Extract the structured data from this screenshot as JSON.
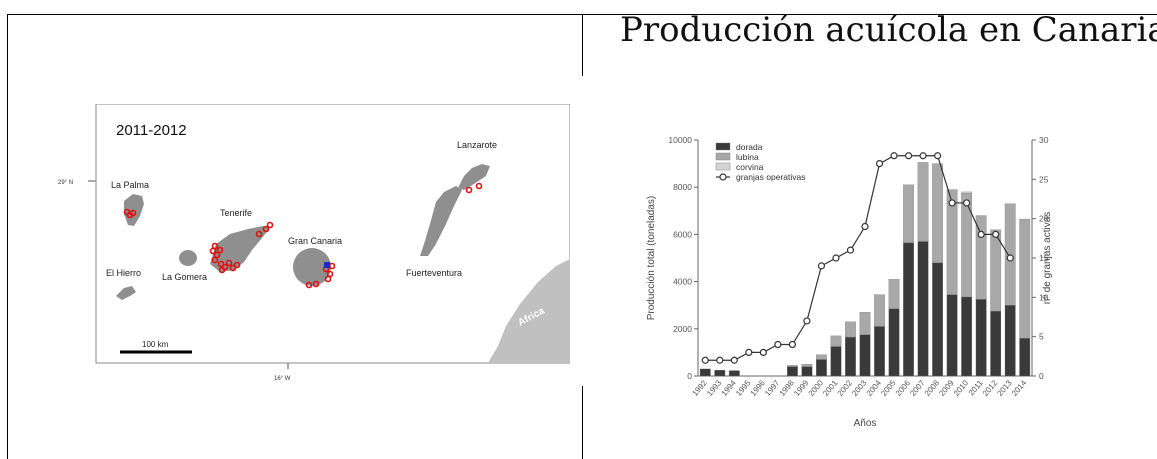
{
  "slide": {
    "title": "Producción acuícola en Canarias"
  },
  "map": {
    "period": "2011-2012",
    "lat_label": "29° N",
    "lon_label": "16° W",
    "scale_label": "100 km",
    "islands": {
      "la_palma": "La Palma",
      "el_hierro": "El Hierro",
      "la_gomera": "La Gomera",
      "tenerife": "Tenerife",
      "gran_canaria": "Gran Canaria",
      "fuerteventura": "Fuerteventura",
      "lanzarote": "Lanzarote",
      "africa": "Africa"
    },
    "colors": {
      "sea": "#ffffff",
      "land": "#8f8f8f",
      "africa": "#c0c0c0",
      "farm": "#e01010",
      "marker": "#1a2ad0"
    }
  },
  "chart_data": {
    "type": "bar",
    "stacked": true,
    "categories": [
      "1992",
      "1993",
      "1994",
      "1995",
      "1996",
      "1997",
      "1998",
      "1999",
      "2000",
      "2001",
      "2002",
      "2003",
      "2004",
      "2005",
      "2006",
      "2007",
      "2008",
      "2009",
      "2010",
      "2011",
      "2012",
      "2013",
      "2014"
    ],
    "series": [
      {
        "name": "dorada",
        "color": "#3a3a3a",
        "values": [
          300,
          250,
          230,
          0,
          0,
          0,
          400,
          400,
          700,
          1250,
          1650,
          1750,
          2100,
          2850,
          5650,
          5700,
          4800,
          3450,
          3350,
          3250,
          2750,
          3000,
          1600
        ]
      },
      {
        "name": "lubina",
        "color": "#a8a8a8",
        "values": [
          0,
          0,
          0,
          0,
          0,
          0,
          50,
          100,
          200,
          450,
          650,
          950,
          1350,
          1250,
          2450,
          3350,
          4200,
          4450,
          4400,
          3550,
          3450,
          4300,
          5050
        ]
      },
      {
        "name": "corvina",
        "color": "#d4d4d4",
        "values": [
          0,
          0,
          0,
          0,
          0,
          0,
          0,
          0,
          0,
          0,
          0,
          0,
          0,
          0,
          0,
          0,
          0,
          0,
          50,
          0,
          0,
          0,
          0
        ]
      }
    ],
    "line": {
      "name": "granjas operativas",
      "axis": "right",
      "values": [
        2,
        2,
        2,
        3,
        3,
        4,
        4,
        7,
        14,
        15,
        16,
        19,
        27,
        28,
        28,
        28,
        28,
        22,
        22,
        18,
        18,
        15,
        null
      ]
    },
    "xlabel": "Años",
    "ylabel": "Producción total (toneladas)",
    "y2label": "nº de granjas activas",
    "ylim": [
      0,
      10000
    ],
    "y2lim": [
      0,
      30
    ],
    "yticks": [
      "0",
      "2000",
      "4000",
      "6000",
      "8000",
      "10000"
    ],
    "y2ticks": [
      "0",
      "5",
      "10",
      "15",
      "20",
      "25",
      "30"
    ],
    "legend": "top-left",
    "grid": false
  }
}
